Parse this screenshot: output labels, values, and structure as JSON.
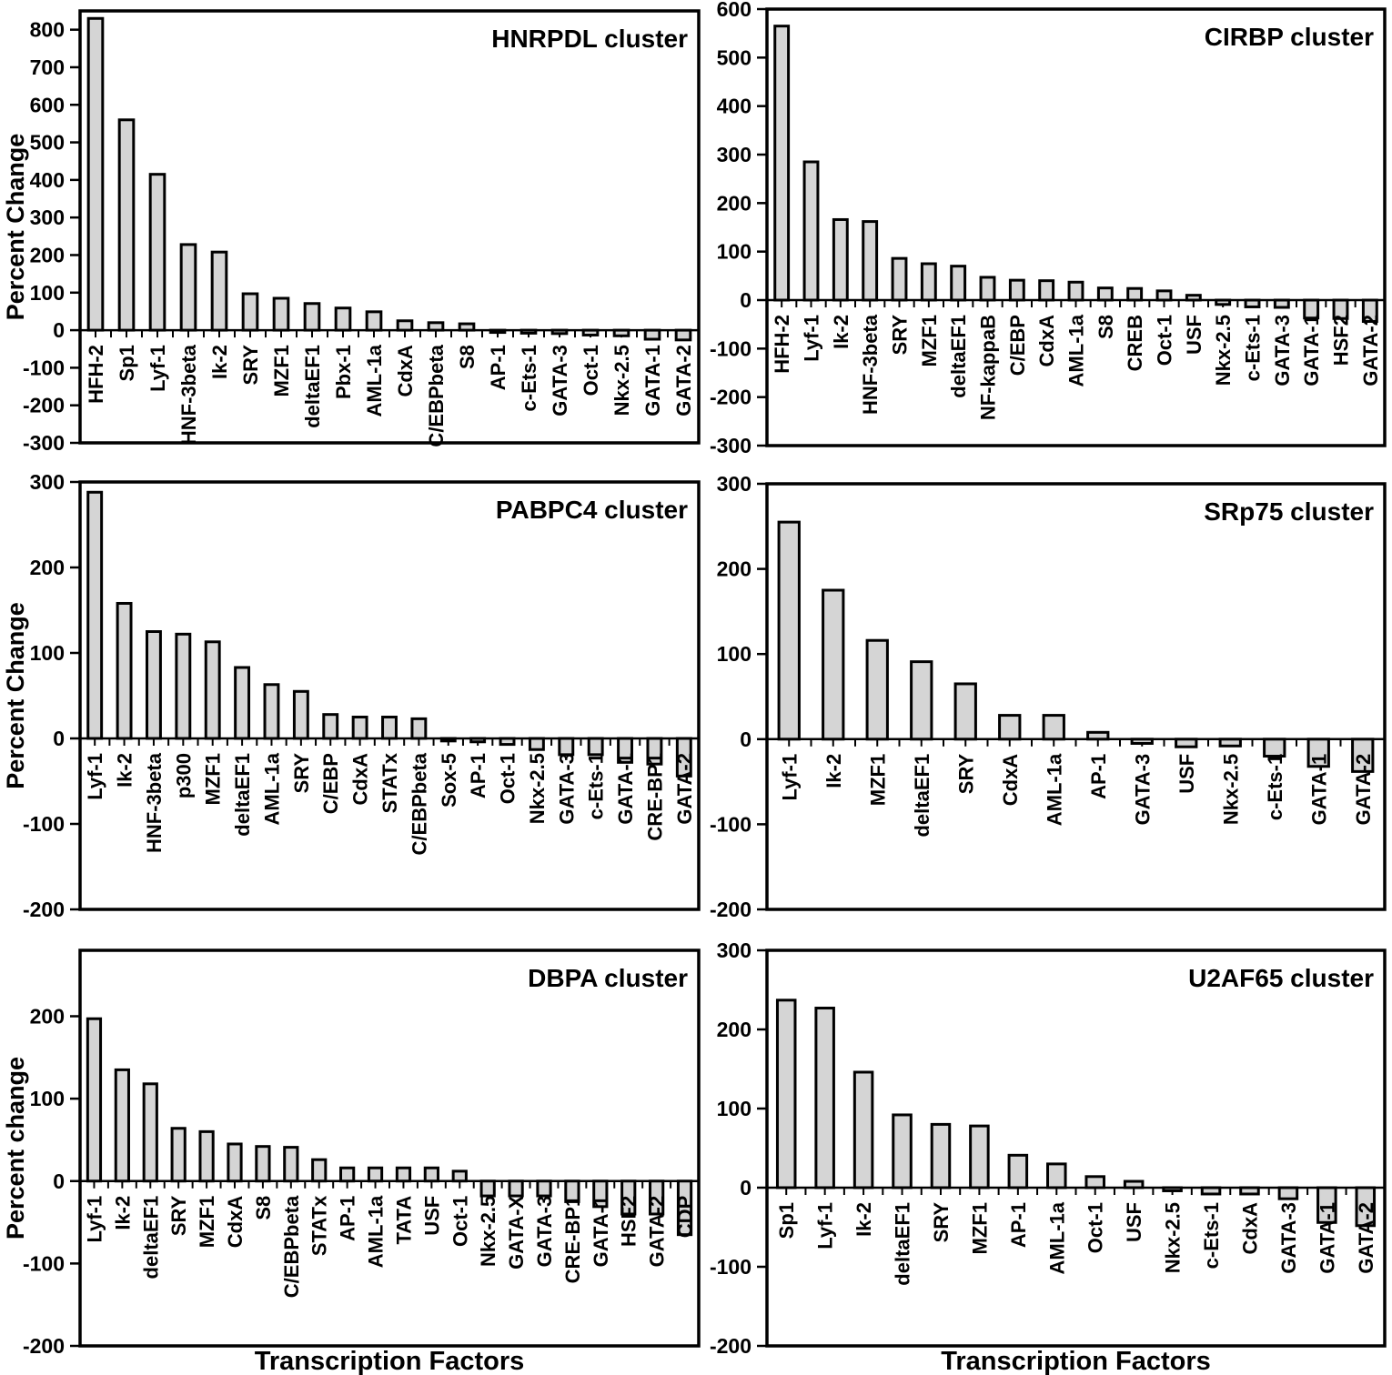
{
  "figure": {
    "description": "Six bar charts of percent change in transcription factor site usage per cluster",
    "background": "#ffffff"
  },
  "style": {
    "bar_fill": "#d5d5d5",
    "bar_stroke": "#000000",
    "axis_color": "#000000",
    "text_color": "#000000"
  },
  "chart_data": [
    {
      "type": "bar",
      "title": "HNRPDL cluster",
      "ylabel": "Percent Change",
      "xlabel": null,
      "ylim": [
        -300,
        850
      ],
      "yticks": [
        800,
        700,
        600,
        500,
        400,
        300,
        200,
        100,
        0,
        -100,
        -200,
        -300
      ],
      "grid": false,
      "legend": null,
      "categories": [
        "HFH-2",
        "Sp1",
        "Lyf-1",
        "HNF-3beta",
        "Ik-2",
        "SRY",
        "MZF1",
        "deltaEF1",
        "Pbx-1",
        "AML-1a",
        "CdxA",
        "C/EBPbeta",
        "S8",
        "AP-1",
        "c-Ets-1",
        "GATA-3",
        "Oct-1",
        "Nkx-2.5",
        "GATA-1",
        "GATA-2"
      ],
      "values": [
        830,
        560,
        415,
        228,
        208,
        97,
        85,
        71,
        59,
        49,
        25,
        20,
        17,
        -6,
        -8,
        -9,
        -13,
        -15,
        -24,
        -26
      ]
    },
    {
      "type": "bar",
      "title": "CIRBP cluster",
      "ylabel": null,
      "xlabel": null,
      "ylim": [
        -300,
        600
      ],
      "yticks": [
        600,
        500,
        400,
        300,
        200,
        100,
        0,
        -100,
        -200,
        -300
      ],
      "grid": false,
      "legend": null,
      "categories": [
        "HFH-2",
        "Lyf-1",
        "Ik-2",
        "HNF-3beta",
        "SRY",
        "MZF1",
        "deltaEF1",
        "NF-kappaB",
        "C/EBP",
        "CdxA",
        "AML-1a",
        "S8",
        "CREB",
        "Oct-1",
        "USF",
        "Nkx-2.5",
        "c-Ets-1",
        "GATA-3",
        "GATA-1",
        "HSF2",
        "GATA-2"
      ],
      "values": [
        565,
        285,
        166,
        162,
        86,
        75,
        70,
        47,
        41,
        40,
        37,
        25,
        24,
        19,
        10,
        -9,
        -14,
        -15,
        -37,
        -38,
        -44
      ]
    },
    {
      "type": "bar",
      "title": "PABPC4 cluster",
      "ylabel": "Percent Change",
      "xlabel": null,
      "ylim": [
        -200,
        300
      ],
      "yticks": [
        300,
        200,
        100,
        0,
        -100,
        -200
      ],
      "grid": false,
      "legend": null,
      "categories": [
        "Lyf-1",
        "Ik-2",
        "HNF-3beta",
        "p300",
        "MZF1",
        "deltaEF1",
        "AML-1a",
        "SRY",
        "C/EBP",
        "CdxA",
        "STATx",
        "C/EBPbeta",
        "Sox-5",
        "AP-1",
        "Oct-1",
        "Nkx-2.5",
        "GATA-3",
        "c-Ets-1",
        "GATA-1",
        "CRE-BP1",
        "GATA-2"
      ],
      "values": [
        288,
        158,
        125,
        122,
        113,
        83,
        63,
        55,
        28,
        25,
        25,
        23,
        -3,
        -4,
        -7,
        -13,
        -19,
        -19,
        -28,
        -30,
        -44
      ]
    },
    {
      "type": "bar",
      "title": "SRp75 cluster",
      "ylabel": null,
      "xlabel": null,
      "ylim": [
        -200,
        300
      ],
      "yticks": [
        300,
        200,
        100,
        0,
        -100,
        -200
      ],
      "grid": false,
      "legend": null,
      "categories": [
        "Lyf-1",
        "Ik-2",
        "MZF1",
        "deltaEF1",
        "SRY",
        "CdxA",
        "AML-1a",
        "AP-1",
        "GATA-3",
        "USF",
        "Nkx-2.5",
        "c-Ets-1",
        "GATA-1",
        "GATA-2"
      ],
      "values": [
        255,
        175,
        116,
        91,
        65,
        28,
        28,
        8,
        -5,
        -9,
        -8,
        -20,
        -32,
        -38
      ]
    },
    {
      "type": "bar",
      "title": "DBPA cluster",
      "ylabel": "Percent change",
      "xlabel": "Transcription Factors",
      "ylim": [
        -200,
        280
      ],
      "yticks": [
        200,
        100,
        0,
        -100,
        -200
      ],
      "grid": false,
      "legend": null,
      "categories": [
        "Lyf-1",
        "Ik-2",
        "deltaEF1",
        "SRY",
        "MZF1",
        "CdxA",
        "S8",
        "C/EBPbeta",
        "STATx",
        "AP-1",
        "AML-1a",
        "TATA",
        "USF",
        "Oct-1",
        "Nkx-2.5",
        "GATA-X",
        "GATA-3",
        "CRE-BP1",
        "GATA-1",
        "HSF2",
        "GATA-2",
        "CDP"
      ],
      "values": [
        197,
        135,
        118,
        64,
        60,
        45,
        42,
        41,
        26,
        16,
        16,
        16,
        16,
        12,
        -18,
        -18,
        -18,
        -25,
        -31,
        -40,
        -40,
        -65
      ]
    },
    {
      "type": "bar",
      "title": "U2AF65 cluster",
      "ylabel": null,
      "xlabel": "Transcription Factors",
      "ylim": [
        -200,
        300
      ],
      "yticks": [
        300,
        200,
        100,
        0,
        -100,
        -200
      ],
      "grid": false,
      "legend": null,
      "categories": [
        "Sp1",
        "Lyf-1",
        "Ik-2",
        "deltaEF1",
        "SRY",
        "MZF1",
        "AP-1",
        "AML-1a",
        "Oct-1",
        "USF",
        "Nkx-2.5",
        "c-Ets-1",
        "CdxA",
        "GATA-3",
        "GATA-1",
        "GATA-2"
      ],
      "values": [
        237,
        227,
        146,
        92,
        80,
        78,
        41,
        30,
        14,
        8,
        -4,
        -8,
        -8,
        -14,
        -44,
        -48
      ]
    }
  ]
}
